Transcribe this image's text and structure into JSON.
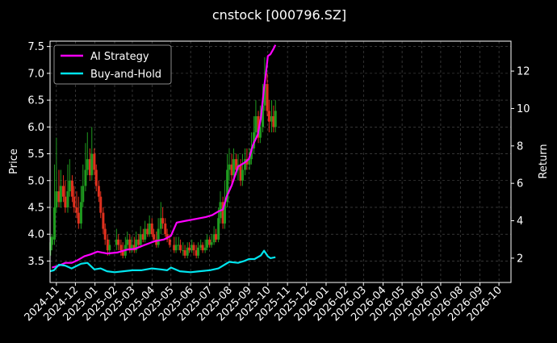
{
  "chart_data": {
    "type": "line",
    "title": "cnstock [000796.SZ]",
    "ylabel_left": "Price",
    "ylabel_right": "Return",
    "xlabel": "",
    "grid": true,
    "legend_position": "top-left",
    "background": "#000000",
    "x_range": [
      "2024-10-22",
      "2026-10-20"
    ],
    "ylim_left": [
      3.1,
      7.6
    ],
    "ylim_right": [
      0.7,
      13.6
    ],
    "left_ticks": [
      "3.5",
      "4.0",
      "4.5",
      "5.0",
      "5.5",
      "6.0",
      "6.5",
      "7.0",
      "7.5"
    ],
    "right_ticks": [
      "2",
      "4",
      "6",
      "8",
      "10",
      "12"
    ],
    "x_ticks": [
      "2024-11",
      "2024-12",
      "2025-01",
      "2025-02",
      "2025-03",
      "2025-04",
      "2025-05",
      "2025-06",
      "2025-07",
      "2025-08",
      "2025-09",
      "2025-10",
      "2025-11",
      "2025-12",
      "2026-01",
      "2026-02",
      "2026-03",
      "2026-04",
      "2026-05",
      "2026-06",
      "2026-07",
      "2026-08",
      "2026-09",
      "2026-10"
    ],
    "series": [
      {
        "name": "AI Strategy",
        "color": "#ff00ff",
        "axis": "right",
        "x": [
          "2024-10-25",
          "2024-11-05",
          "2024-11-15",
          "2024-11-25",
          "2024-12-05",
          "2024-12-15",
          "2024-12-25",
          "2025-01-05",
          "2025-01-20",
          "2025-02-05",
          "2025-02-20",
          "2025-03-05",
          "2025-03-20",
          "2025-04-05",
          "2025-04-20",
          "2025-05-01",
          "2025-05-10",
          "2025-05-25",
          "2025-06-10",
          "2025-06-25",
          "2025-07-05",
          "2025-07-15",
          "2025-07-22",
          "2025-07-28",
          "2025-08-05",
          "2025-08-15",
          "2025-08-25",
          "2025-09-01",
          "2025-09-08",
          "2025-09-15",
          "2025-09-20",
          "2025-09-25",
          "2025-09-28",
          "2025-10-01",
          "2025-10-05",
          "2025-10-10",
          "2025-10-13"
        ],
        "values": [
          1.5,
          1.6,
          1.75,
          1.75,
          1.9,
          2.1,
          2.2,
          2.35,
          2.25,
          2.3,
          2.45,
          2.5,
          2.7,
          2.9,
          3.0,
          3.2,
          3.9,
          4.0,
          4.1,
          4.2,
          4.3,
          4.5,
          4.6,
          5.3,
          5.9,
          6.9,
          7.1,
          7.3,
          8.1,
          8.6,
          9.5,
          11.1,
          11.9,
          12.8,
          12.9,
          13.2,
          13.4
        ]
      },
      {
        "name": "Buy-and-Hold",
        "color": "#00e5ee",
        "axis": "right",
        "x": [
          "2024-10-22",
          "2024-10-28",
          "2024-11-05",
          "2024-11-15",
          "2024-11-25",
          "2024-12-01",
          "2024-12-10",
          "2024-12-20",
          "2024-12-31",
          "2025-01-10",
          "2025-01-20",
          "2025-02-01",
          "2025-02-15",
          "2025-03-01",
          "2025-03-15",
          "2025-04-01",
          "2025-04-15",
          "2025-04-25",
          "2025-05-01",
          "2025-05-15",
          "2025-06-01",
          "2025-06-15",
          "2025-07-01",
          "2025-07-15",
          "2025-08-01",
          "2025-08-15",
          "2025-08-25",
          "2025-09-01",
          "2025-09-10",
          "2025-09-20",
          "2025-09-25",
          "2025-10-01",
          "2025-10-05",
          "2025-10-13"
        ],
        "values": [
          1.3,
          1.35,
          1.65,
          1.6,
          1.45,
          1.55,
          1.7,
          1.75,
          1.4,
          1.45,
          1.3,
          1.25,
          1.3,
          1.35,
          1.35,
          1.45,
          1.4,
          1.35,
          1.5,
          1.3,
          1.25,
          1.3,
          1.35,
          1.45,
          1.8,
          1.75,
          1.85,
          1.95,
          1.95,
          2.15,
          2.4,
          2.1,
          2.0,
          2.05
        ]
      }
    ],
    "price_series": {
      "name": "Price",
      "axis": "left",
      "up_color": "#1f9a1f",
      "down_color": "#e0301e",
      "x": [
        "2024-10-23",
        "2024-10-25",
        "2024-10-29",
        "2024-11-01",
        "2024-11-05",
        "2024-11-08",
        "2024-11-12",
        "2024-11-15",
        "2024-11-19",
        "2024-11-22",
        "2024-11-26",
        "2024-11-29",
        "2024-12-03",
        "2024-12-06",
        "2024-12-10",
        "2024-12-13",
        "2024-12-17",
        "2024-12-20",
        "2024-12-24",
        "2024-12-27",
        "2024-12-31",
        "2025-01-03",
        "2025-01-07",
        "2025-01-10",
        "2025-01-14",
        "2025-01-17",
        "2025-01-21",
        "2025-01-24",
        "2025-02-04",
        "2025-02-07",
        "2025-02-11",
        "2025-02-14",
        "2025-02-18",
        "2025-02-21",
        "2025-02-25",
        "2025-02-28",
        "2025-03-04",
        "2025-03-07",
        "2025-03-11",
        "2025-03-14",
        "2025-03-18",
        "2025-03-21",
        "2025-03-25",
        "2025-03-28",
        "2025-04-01",
        "2025-04-04",
        "2025-04-08",
        "2025-04-11",
        "2025-04-15",
        "2025-04-18",
        "2025-04-22",
        "2025-04-25",
        "2025-04-29",
        "2025-05-06",
        "2025-05-09",
        "2025-05-13",
        "2025-05-16",
        "2025-05-20",
        "2025-05-23",
        "2025-05-27",
        "2025-05-30",
        "2025-06-03",
        "2025-06-06",
        "2025-06-10",
        "2025-06-13",
        "2025-06-17",
        "2025-06-20",
        "2025-06-24",
        "2025-06-27",
        "2025-07-01",
        "2025-07-04",
        "2025-07-08",
        "2025-07-11",
        "2025-07-15",
        "2025-07-18",
        "2025-07-22",
        "2025-07-25",
        "2025-07-29",
        "2025-08-01",
        "2025-08-05",
        "2025-08-08",
        "2025-08-12",
        "2025-08-15",
        "2025-08-19",
        "2025-08-22",
        "2025-08-26",
        "2025-08-29",
        "2025-09-02",
        "2025-09-05",
        "2025-09-09",
        "2025-09-12",
        "2025-09-16",
        "2025-09-19",
        "2025-09-23",
        "2025-09-26",
        "2025-09-30",
        "2025-10-03",
        "2025-10-07",
        "2025-10-10",
        "2025-10-13"
      ],
      "open": [
        3.7,
        3.8,
        3.9,
        4.5,
        4.8,
        4.6,
        4.9,
        4.7,
        4.5,
        4.8,
        5.0,
        4.7,
        4.5,
        4.4,
        4.2,
        4.6,
        4.9,
        5.2,
        5.4,
        5.1,
        5.5,
        5.2,
        4.9,
        4.7,
        4.4,
        4.1,
        3.9,
        3.7,
        3.8,
        3.9,
        3.8,
        3.7,
        3.6,
        3.8,
        3.9,
        3.7,
        3.8,
        3.7,
        3.9,
        3.8,
        4.0,
        3.9,
        4.1,
        4.0,
        4.2,
        4.0,
        3.9,
        3.8,
        4.1,
        4.3,
        4.2,
        4.0,
        3.9,
        3.8,
        3.7,
        3.8,
        3.8,
        3.7,
        3.7,
        3.6,
        3.75,
        3.7,
        3.8,
        3.7,
        3.6,
        3.75,
        3.8,
        3.7,
        3.75,
        3.9,
        3.8,
        3.85,
        4.0,
        3.9,
        4.3,
        4.6,
        4.2,
        4.6,
        5.2,
        5.3,
        5.1,
        5.4,
        5.2,
        5.3,
        5.0,
        5.2,
        5.4,
        5.3,
        5.4,
        5.6,
        5.9,
        6.2,
        5.8,
        6.0,
        6.4,
        6.8,
        6.3,
        6.1,
        6.2,
        6.0
      ],
      "close": [
        3.85,
        3.95,
        4.5,
        4.8,
        4.6,
        4.9,
        4.7,
        4.5,
        4.8,
        5.0,
        4.7,
        4.5,
        4.4,
        4.2,
        4.6,
        4.9,
        5.2,
        5.4,
        5.1,
        5.5,
        5.2,
        4.9,
        4.7,
        4.4,
        4.1,
        3.9,
        3.7,
        3.8,
        3.9,
        3.8,
        3.7,
        3.6,
        3.8,
        3.9,
        3.7,
        3.8,
        3.7,
        3.9,
        3.8,
        4.0,
        3.9,
        4.1,
        4.0,
        4.2,
        4.0,
        3.9,
        3.8,
        4.1,
        4.3,
        4.2,
        4.0,
        3.9,
        3.8,
        3.7,
        3.8,
        3.8,
        3.7,
        3.7,
        3.6,
        3.75,
        3.7,
        3.8,
        3.7,
        3.6,
        3.75,
        3.8,
        3.7,
        3.75,
        3.9,
        3.8,
        3.85,
        4.0,
        3.9,
        4.3,
        4.6,
        4.2,
        4.6,
        5.2,
        5.3,
        5.1,
        5.4,
        5.2,
        5.3,
        5.0,
        5.2,
        5.4,
        5.3,
        5.4,
        5.6,
        5.9,
        6.2,
        5.8,
        6.0,
        6.4,
        6.8,
        6.3,
        6.1,
        6.2,
        6.0,
        6.3
      ],
      "high": [
        3.95,
        4.0,
        5.3,
        5.8,
        5.2,
        5.2,
        5.1,
        5.0,
        5.3,
        5.4,
        5.1,
        4.9,
        4.8,
        4.7,
        4.9,
        5.3,
        5.7,
        5.9,
        5.6,
        6.0,
        5.6,
        5.3,
        5.0,
        4.8,
        4.5,
        4.2,
        4.0,
        3.9,
        4.1,
        4.0,
        3.9,
        3.85,
        3.95,
        4.05,
        4.0,
        3.95,
        3.95,
        4.05,
        4.0,
        4.15,
        4.1,
        4.25,
        4.2,
        4.35,
        4.3,
        4.1,
        4.05,
        4.3,
        4.6,
        4.5,
        4.3,
        4.1,
        4.0,
        3.95,
        3.95,
        3.95,
        3.9,
        3.85,
        3.8,
        3.85,
        3.85,
        3.9,
        3.85,
        3.8,
        3.85,
        3.9,
        3.85,
        3.9,
        4.0,
        3.95,
        4.0,
        4.15,
        4.1,
        4.5,
        4.8,
        4.7,
        5.0,
        5.5,
        5.6,
        5.5,
        5.6,
        5.5,
        5.5,
        5.4,
        5.5,
        5.6,
        5.6,
        5.6,
        5.9,
        6.2,
        6.5,
        6.3,
        6.4,
        6.8,
        7.3,
        7.0,
        6.5,
        6.5,
        6.4,
        6.5
      ],
      "low": [
        3.6,
        3.7,
        3.8,
        4.4,
        4.5,
        4.5,
        4.6,
        4.4,
        4.4,
        4.7,
        4.6,
        4.4,
        4.3,
        4.1,
        4.1,
        4.5,
        4.8,
        5.1,
        5.0,
        5.0,
        5.1,
        4.8,
        4.6,
        4.3,
        4.0,
        3.8,
        3.6,
        3.6,
        3.7,
        3.7,
        3.6,
        3.55,
        3.55,
        3.7,
        3.65,
        3.65,
        3.65,
        3.65,
        3.75,
        3.75,
        3.85,
        3.85,
        3.95,
        3.95,
        3.95,
        3.85,
        3.75,
        3.75,
        4.0,
        4.1,
        3.95,
        3.85,
        3.75,
        3.65,
        3.65,
        3.7,
        3.65,
        3.6,
        3.55,
        3.55,
        3.65,
        3.65,
        3.6,
        3.55,
        3.55,
        3.7,
        3.65,
        3.65,
        3.7,
        3.75,
        3.75,
        3.8,
        3.85,
        3.85,
        4.2,
        4.1,
        4.1,
        4.5,
        5.0,
        4.9,
        5.0,
        5.1,
        5.0,
        4.9,
        4.9,
        5.1,
        5.2,
        5.2,
        5.3,
        5.5,
        5.8,
        5.7,
        5.7,
        5.9,
        6.3,
        6.2,
        5.9,
        5.9,
        5.9,
        5.9
      ]
    }
  }
}
